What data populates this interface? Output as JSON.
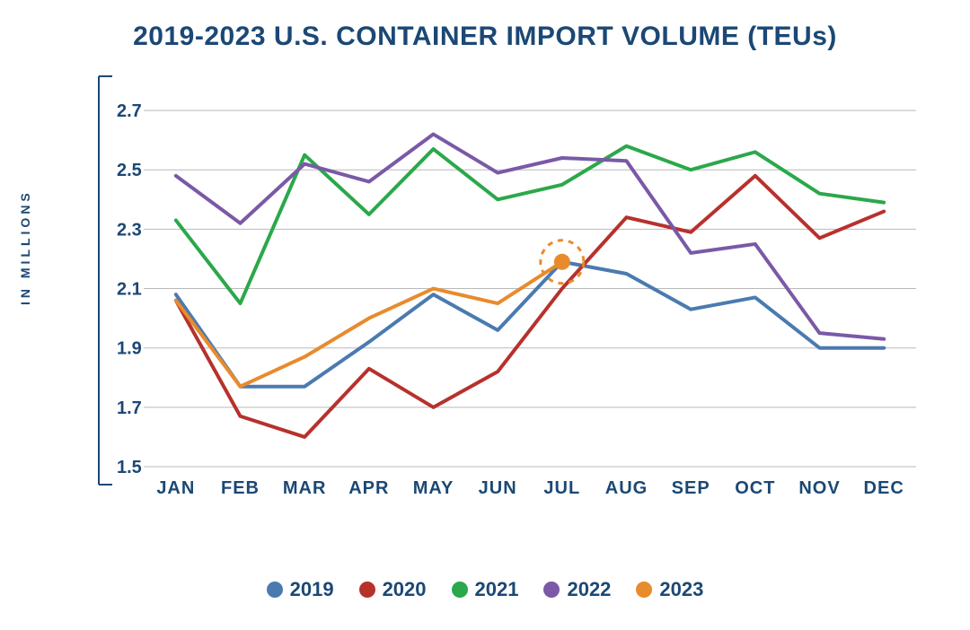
{
  "chart": {
    "type": "line",
    "title": "2019-2023 U.S. CONTAINER IMPORT VOLUME (TEUs)",
    "title_color": "#1b4875",
    "title_fontsize": 30,
    "y_axis_title": "IN MILLIONS",
    "y_axis_title_fontsize": 14,
    "background_color": "#ffffff",
    "grid_color": "#b9b9b9",
    "axis_color": "#1b4875",
    "label_color": "#1b4875",
    "line_width": 4,
    "categories": [
      "JAN",
      "FEB",
      "MAR",
      "APR",
      "MAY",
      "JUN",
      "JUL",
      "AUG",
      "SEP",
      "OCT",
      "NOV",
      "DEC"
    ],
    "ylim": [
      1.5,
      2.8
    ],
    "yticks": [
      1.5,
      1.7,
      1.9,
      2.1,
      2.3,
      2.5,
      2.7
    ],
    "ytick_labels": [
      "1.5",
      "1.7",
      "1.9",
      "2.1",
      "2.3",
      "2.5",
      "2.7"
    ],
    "series": [
      {
        "name": "2019",
        "color": "#4a7ab0",
        "values": [
          2.08,
          1.77,
          1.77,
          1.92,
          2.08,
          1.96,
          2.19,
          2.15,
          2.03,
          2.07,
          1.9,
          1.9
        ]
      },
      {
        "name": "2020",
        "color": "#b7312c",
        "values": [
          2.06,
          1.67,
          1.6,
          1.83,
          1.7,
          1.82,
          2.1,
          2.34,
          2.29,
          2.48,
          2.27,
          2.36
        ]
      },
      {
        "name": "2021",
        "color": "#2ba84a",
        "values": [
          2.33,
          2.05,
          2.55,
          2.35,
          2.57,
          2.4,
          2.45,
          2.58,
          2.5,
          2.56,
          2.42,
          2.39
        ]
      },
      {
        "name": "2022",
        "color": "#7a59a6",
        "values": [
          2.48,
          2.32,
          2.52,
          2.46,
          2.62,
          2.49,
          2.54,
          2.53,
          2.22,
          2.25,
          1.95,
          1.93
        ]
      },
      {
        "name": "2023",
        "color": "#e88b2d",
        "values": [
          2.06,
          1.77,
          1.87,
          2.0,
          2.1,
          2.05,
          2.19
        ],
        "highlight_last": true
      }
    ],
    "highlight_marker": {
      "series": "2023",
      "index": 6,
      "dot_radius": 9,
      "ring_radius": 24,
      "ring_dash": "6 6",
      "color": "#e88b2d"
    },
    "legend_fontsize": 22,
    "tick_fontsize": 20
  }
}
